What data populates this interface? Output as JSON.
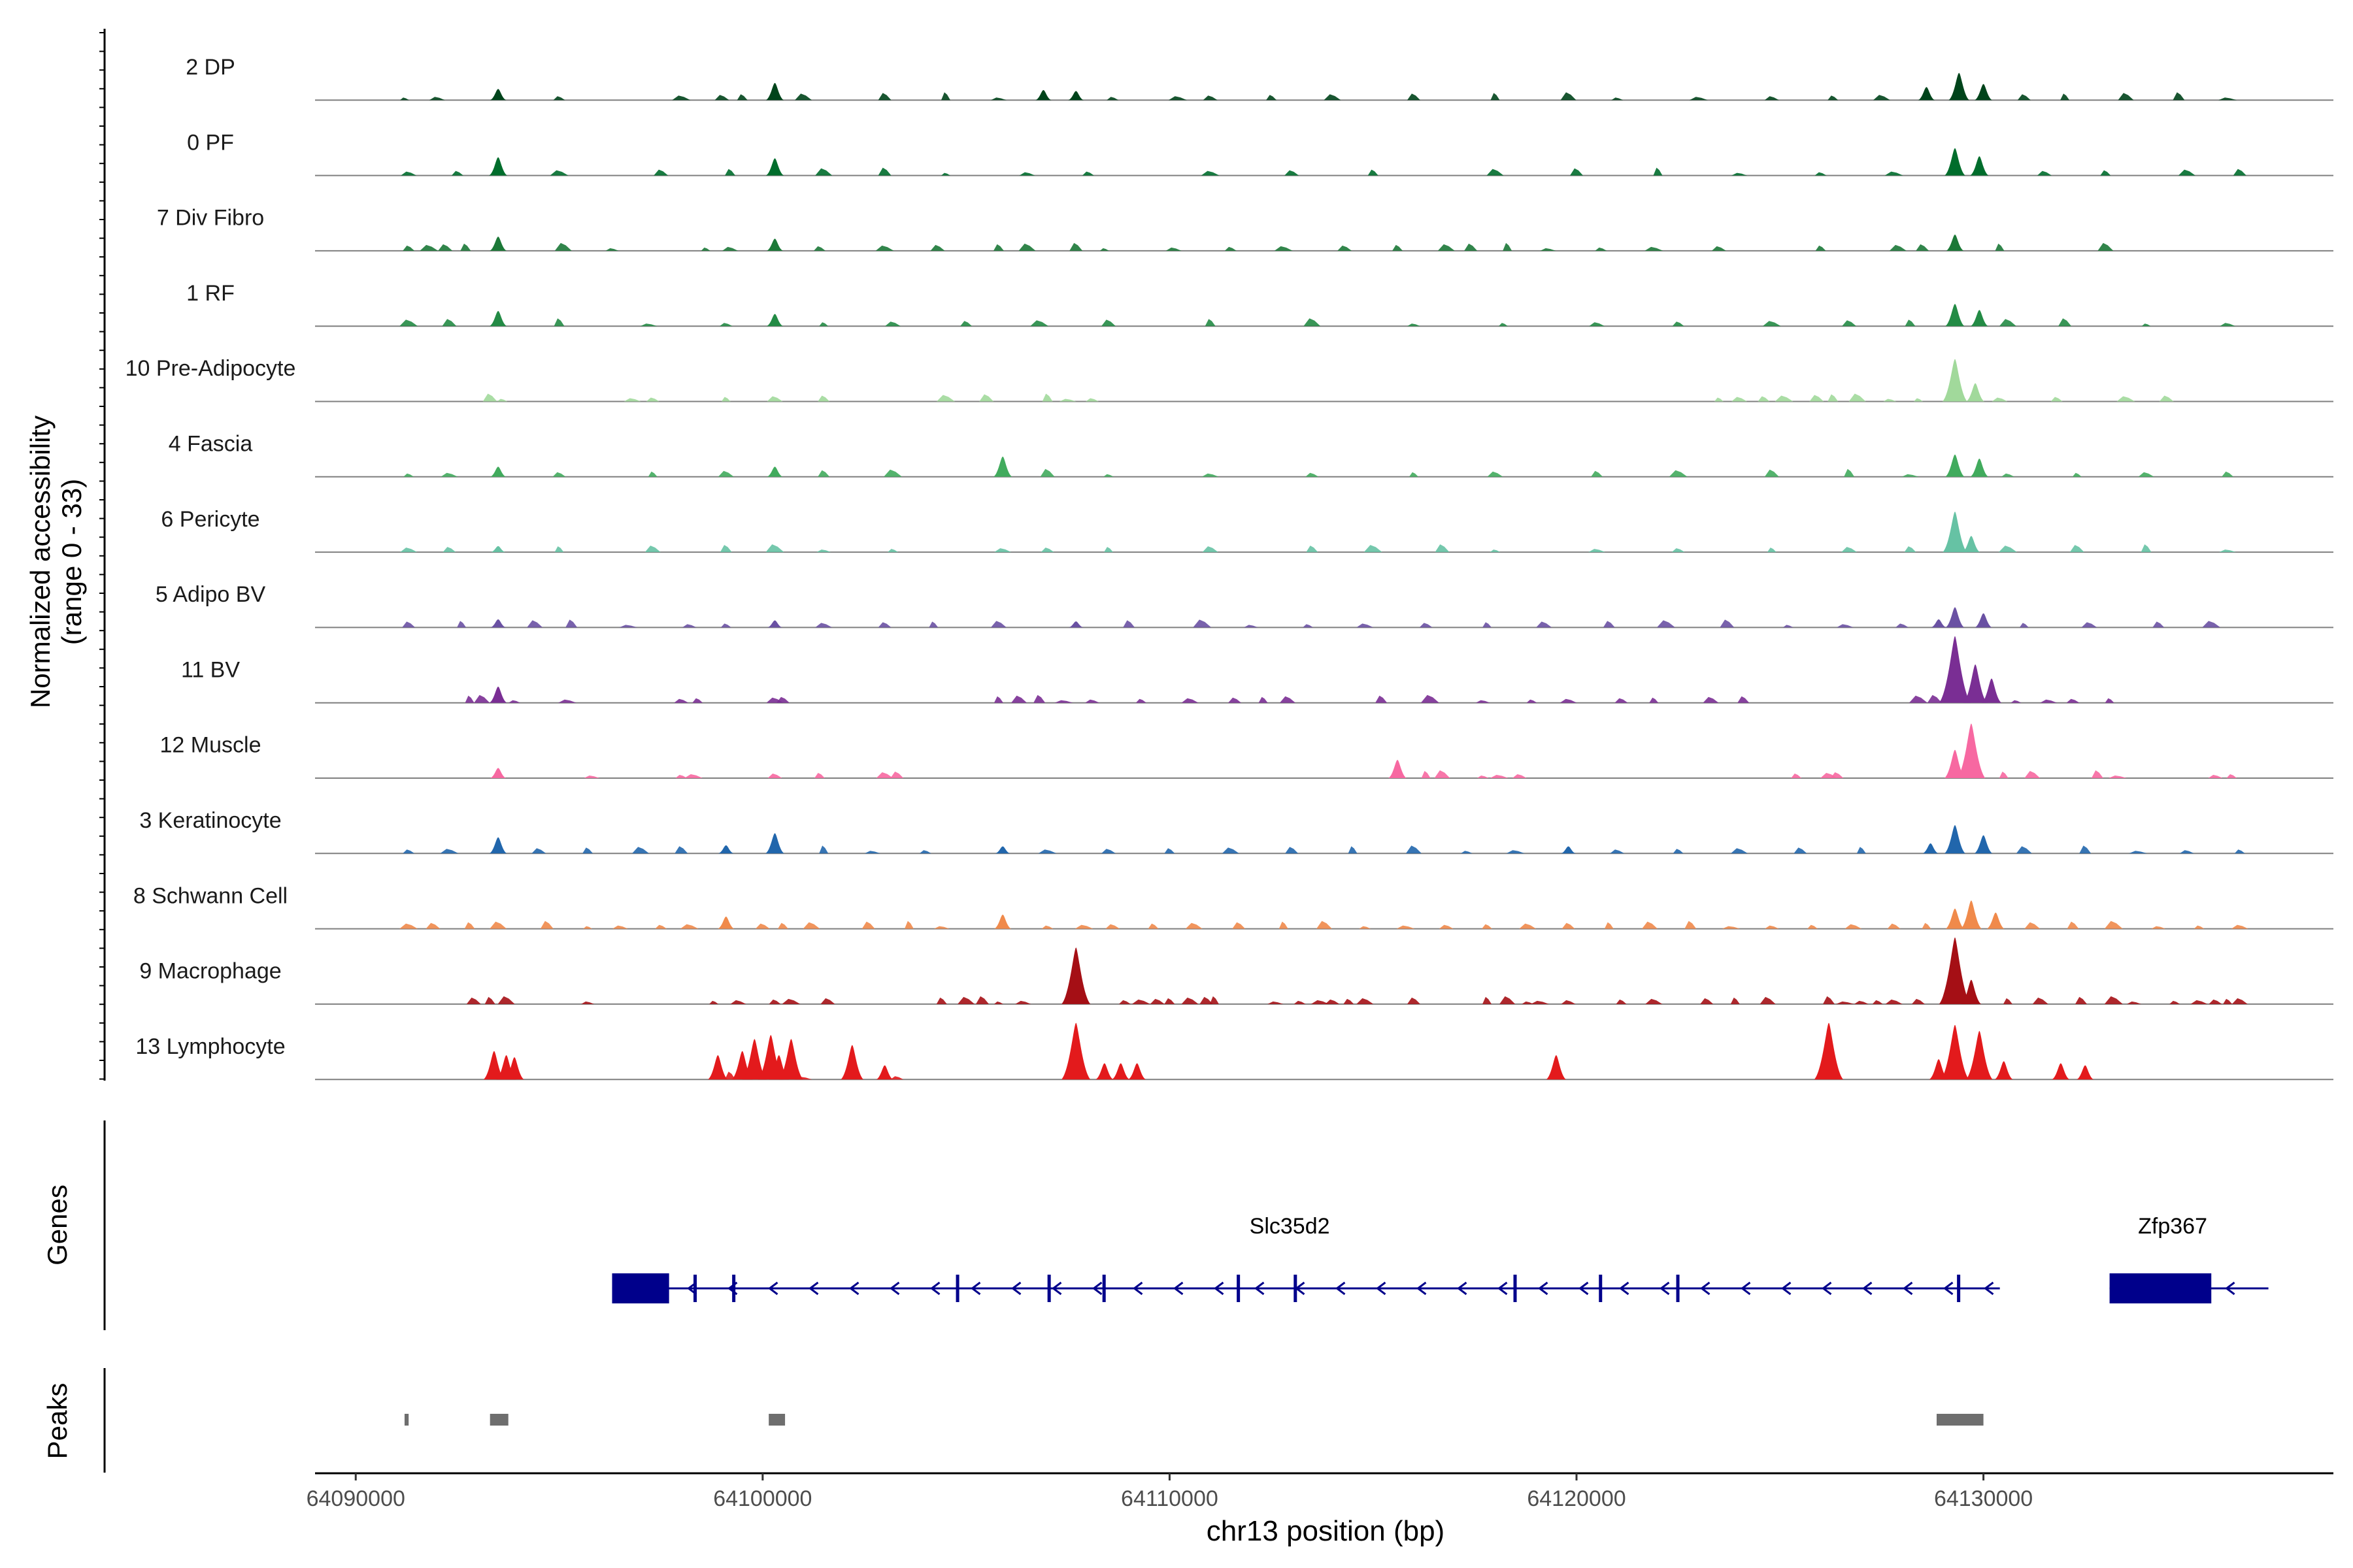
{
  "chart_data": {
    "type": "area",
    "chromosome": "chr13",
    "xlabel": "chr13 position (bp)",
    "ylabel_line1": "Normalized accessibility",
    "ylabel_line2": "(range 0 - 33)",
    "y_range": [
      0,
      33
    ],
    "xlim": [
      64089000,
      64138600
    ],
    "x_ticks": [
      64090000,
      64100000,
      64110000,
      64120000,
      64130000
    ],
    "x_tick_labels": [
      "64090000",
      "64100000",
      "64110000",
      "64120000",
      "64130000"
    ],
    "genes_label": "Genes",
    "peaks_label": "Peaks",
    "tracks": [
      {
        "name": "2 DP",
        "color": "#00441b",
        "peaks": [
          {
            "x": 64093500,
            "y": 5.5
          },
          {
            "x": 64100300,
            "y": 8.5
          },
          {
            "x": 64106900,
            "y": 5
          },
          {
            "x": 64107700,
            "y": 4.5
          },
          {
            "x": 64128600,
            "y": 6.5
          },
          {
            "x": 64129400,
            "y": 13.5
          },
          {
            "x": 64130000,
            "y": 8
          }
        ],
        "background": [
          64091200,
          64092000,
          64095000,
          64098000,
          64099000,
          64099500,
          64101000,
          64103000,
          64104500,
          64105800,
          64108600,
          64110200,
          64111000,
          64112500,
          64114000,
          64116000,
          64118000,
          64119800,
          64121000,
          64123000,
          64124800,
          64126300,
          64127500,
          64131000,
          64132000,
          64133500,
          64134800,
          64136000
        ]
      },
      {
        "name": "0 PF",
        "color": "#006d2c",
        "peaks": [
          {
            "x": 64093500,
            "y": 9
          },
          {
            "x": 64100300,
            "y": 8.5
          },
          {
            "x": 64129300,
            "y": 13.5
          },
          {
            "x": 64129900,
            "y": 9.5
          }
        ],
        "background": [
          64091300,
          64092500,
          64095000,
          64097500,
          64099200,
          64101500,
          64103000,
          64104500,
          64106500,
          64108000,
          64111000,
          64113000,
          64115000,
          64118000,
          64120000,
          64122000,
          64124000,
          64126000,
          64127800,
          64131500,
          64133000,
          64135000,
          64136300
        ]
      },
      {
        "name": "7 Div Fibro",
        "color": "#1b7837",
        "peaks": [
          {
            "x": 64093500,
            "y": 7
          },
          {
            "x": 64100300,
            "y": 6
          },
          {
            "x": 64129300,
            "y": 8
          }
        ],
        "background": [
          64091300,
          64091800,
          64092200,
          64092700,
          64095100,
          64096300,
          64098600,
          64099200,
          64101400,
          64103000,
          64104300,
          64105800,
          64106500,
          64107700,
          64108400,
          64110100,
          64111500,
          64112800,
          64114300,
          64115600,
          64116800,
          64117400,
          64118300,
          64119300,
          64120600,
          64121900,
          64123500,
          64126000,
          64127900,
          64128500,
          64130400,
          64133000
        ]
      },
      {
        "name": "1 RF",
        "color": "#238b45",
        "peaks": [
          {
            "x": 64093500,
            "y": 7.5
          },
          {
            "x": 64100300,
            "y": 6
          },
          {
            "x": 64129300,
            "y": 11
          },
          {
            "x": 64129900,
            "y": 8
          }
        ],
        "background": [
          64091300,
          64092300,
          64095000,
          64097200,
          64099100,
          64101500,
          64103200,
          64105000,
          64106800,
          64108500,
          64111000,
          64113500,
          64116000,
          64118200,
          64120500,
          64122500,
          64124800,
          64126700,
          64128200,
          64130600,
          64132000,
          64134000,
          64136000
        ]
      },
      {
        "name": "10 Pre-Adipocyte",
        "color": "#a1d99b",
        "peaks": [
          {
            "x": 64129300,
            "y": 21
          },
          {
            "x": 64129800,
            "y": 9
          }
        ],
        "background": [
          64093300,
          64093600,
          64096800,
          64097300,
          64099100,
          64100300,
          64101500,
          64104500,
          64105500,
          64107000,
          64107500,
          64108100,
          64123500,
          64124000,
          64124600,
          64125100,
          64125900,
          64126300,
          64126900,
          64127700,
          64128400,
          64130400,
          64131800,
          64133500,
          64134500
        ]
      },
      {
        "name": "4 Fascia",
        "color": "#41ab5d",
        "peaks": [
          {
            "x": 64093500,
            "y": 5
          },
          {
            "x": 64100300,
            "y": 5
          },
          {
            "x": 64105900,
            "y": 10
          },
          {
            "x": 64129300,
            "y": 11
          },
          {
            "x": 64129900,
            "y": 9
          }
        ],
        "background": [
          64091300,
          64092300,
          64095000,
          64097300,
          64099100,
          64101500,
          64103200,
          64107000,
          64108500,
          64111000,
          64113500,
          64116000,
          64118000,
          64120500,
          64122500,
          64124800,
          64126700,
          64128200,
          64130600,
          64132300,
          64134000,
          64136000
        ]
      },
      {
        "name": "6 Pericyte",
        "color": "#66c2a4",
        "peaks": [
          {
            "x": 64093500,
            "y": 3
          },
          {
            "x": 64129300,
            "y": 20
          },
          {
            "x": 64129700,
            "y": 8
          }
        ],
        "background": [
          64091300,
          64092300,
          64095000,
          64097300,
          64099100,
          64100300,
          64101500,
          64103200,
          64105900,
          64107000,
          64108500,
          64111000,
          64113500,
          64115000,
          64116700,
          64118000,
          64120500,
          64122500,
          64124800,
          64126700,
          64128200,
          64130600,
          64132300,
          64134000,
          64136000
        ]
      },
      {
        "name": "5 Adipo BV",
        "color": "#6a51a3",
        "peaks": [
          {
            "x": 64093500,
            "y": 4
          },
          {
            "x": 64100300,
            "y": 3.5
          },
          {
            "x": 64107700,
            "y": 3
          },
          {
            "x": 64128900,
            "y": 4
          },
          {
            "x": 64129300,
            "y": 10
          },
          {
            "x": 64130000,
            "y": 7
          }
        ],
        "background": [
          64091300,
          64092600,
          64094400,
          64095300,
          64096700,
          64098200,
          64099100,
          64101500,
          64103000,
          64104200,
          64105800,
          64109000,
          64110800,
          64112000,
          64113400,
          64114800,
          64116300,
          64117800,
          64119200,
          64120800,
          64122200,
          64123700,
          64125200,
          64126600,
          64128000,
          64131000,
          64132600,
          64134300,
          64135600
        ]
      },
      {
        "name": "11 BV",
        "color": "#7a2e94",
        "peaks": [
          {
            "x": 64093500,
            "y": 8
          },
          {
            "x": 64129300,
            "y": 33
          },
          {
            "x": 64129800,
            "y": 19
          },
          {
            "x": 64130200,
            "y": 12
          }
        ],
        "background": [
          64092800,
          64093100,
          64093900,
          64095200,
          64098000,
          64098400,
          64100300,
          64100500,
          64105800,
          64106300,
          64106800,
          64107400,
          64108100,
          64109300,
          64110500,
          64111600,
          64112300,
          64112900,
          64115200,
          64116400,
          64117700,
          64118900,
          64119800,
          64121100,
          64121900,
          64123300,
          64124100,
          64128400,
          64128800,
          64130800,
          64131600,
          64132200,
          64133100
        ]
      },
      {
        "name": "12 Muscle",
        "color": "#f768a1",
        "peaks": [
          {
            "x": 64093500,
            "y": 5
          },
          {
            "x": 64115600,
            "y": 9
          },
          {
            "x": 64129700,
            "y": 27
          },
          {
            "x": 64129300,
            "y": 14
          }
        ],
        "background": [
          64095800,
          64098000,
          64098300,
          64100300,
          64101400,
          64103000,
          64103300,
          64116300,
          64116700,
          64117700,
          64118100,
          64118600,
          64125400,
          64126200,
          64126400,
          64130500,
          64131200,
          64132800,
          64133300,
          64135700,
          64136100
        ]
      },
      {
        "name": "3 Keratinocyte",
        "color": "#2166ac",
        "peaks": [
          {
            "x": 64093500,
            "y": 8
          },
          {
            "x": 64099100,
            "y": 4
          },
          {
            "x": 64100300,
            "y": 10
          },
          {
            "x": 64105900,
            "y": 3.5
          },
          {
            "x": 64119800,
            "y": 3.5
          },
          {
            "x": 64128700,
            "y": 5
          },
          {
            "x": 64129300,
            "y": 14
          },
          {
            "x": 64130000,
            "y": 9
          }
        ],
        "background": [
          64091300,
          64092300,
          64094500,
          64095700,
          64097000,
          64098000,
          64101500,
          64102700,
          64104000,
          64107000,
          64108500,
          64110000,
          64111500,
          64113000,
          64114500,
          64116000,
          64117300,
          64118500,
          64121000,
          64122500,
          64124000,
          64125500,
          64127000,
          64131000,
          64132500,
          64133800,
          64135000,
          64136300
        ]
      },
      {
        "name": "8 Schwann Cell",
        "color": "#f08a4b",
        "peaks": [
          {
            "x": 64099100,
            "y": 6
          },
          {
            "x": 64105900,
            "y": 7
          },
          {
            "x": 64129300,
            "y": 10
          },
          {
            "x": 64129700,
            "y": 14
          },
          {
            "x": 64130300,
            "y": 8
          }
        ],
        "background": [
          64091300,
          64091900,
          64092800,
          64093500,
          64094700,
          64095700,
          64096500,
          64097500,
          64098200,
          64100000,
          64100500,
          64101200,
          64102600,
          64103600,
          64104400,
          64107000,
          64107900,
          64108600,
          64109600,
          64110600,
          64111700,
          64112800,
          64113800,
          64114800,
          64115800,
          64116800,
          64117800,
          64118800,
          64119800,
          64120800,
          64121800,
          64122800,
          64123800,
          64124800,
          64125800,
          64126800,
          64127800,
          64128600,
          64131200,
          64132200,
          64133200,
          64134300,
          64135300,
          64136300
        ]
      },
      {
        "name": "9 Macrophage",
        "color": "#a50f15",
        "peaks": [
          {
            "x": 64107700,
            "y": 28
          },
          {
            "x": 64129300,
            "y": 33
          },
          {
            "x": 64129700,
            "y": 12
          }
        ],
        "background": [
          64092900,
          64093300,
          64093700,
          64095700,
          64098800,
          64099400,
          64100300,
          64100700,
          64101600,
          64104400,
          64105000,
          64105400,
          64105800,
          64106400,
          64108900,
          64109300,
          64109700,
          64110000,
          64110500,
          64110900,
          64111100,
          64112600,
          64113200,
          64113700,
          64114000,
          64114400,
          64114800,
          64116000,
          64117800,
          64118300,
          64118800,
          64119100,
          64119800,
          64121100,
          64121900,
          64123200,
          64123900,
          64124700,
          64126200,
          64126600,
          64127000,
          64127400,
          64127800,
          64128400,
          64130600,
          64131400,
          64132400,
          64133200,
          64133700,
          64134700,
          64135300,
          64135700,
          64136000,
          64136300
        ]
      },
      {
        "name": "13 Lymphocyte",
        "color": "#e31a1c",
        "peaks": [
          {
            "x": 64093400,
            "y": 14
          },
          {
            "x": 64093700,
            "y": 12
          },
          {
            "x": 64093900,
            "y": 11
          },
          {
            "x": 64098900,
            "y": 12
          },
          {
            "x": 64099500,
            "y": 14
          },
          {
            "x": 64099800,
            "y": 20
          },
          {
            "x": 64100200,
            "y": 22
          },
          {
            "x": 64100400,
            "y": 12
          },
          {
            "x": 64100700,
            "y": 20
          },
          {
            "x": 64102200,
            "y": 17
          },
          {
            "x": 64103000,
            "y": 7
          },
          {
            "x": 64107700,
            "y": 28
          },
          {
            "x": 64108400,
            "y": 8
          },
          {
            "x": 64108800,
            "y": 8
          },
          {
            "x": 64109200,
            "y": 8
          },
          {
            "x": 64119500,
            "y": 12
          },
          {
            "x": 64126200,
            "y": 28
          },
          {
            "x": 64128900,
            "y": 10
          },
          {
            "x": 64129300,
            "y": 27
          },
          {
            "x": 64129900,
            "y": 24
          },
          {
            "x": 64130500,
            "y": 9
          },
          {
            "x": 64131900,
            "y": 8
          },
          {
            "x": 64132500,
            "y": 7
          }
        ],
        "background": [
          64099200,
          64101000,
          64103300
        ]
      }
    ],
    "genes": [
      {
        "name": "Slc35d2",
        "strand": "-",
        "start": 64096300,
        "end": 64129600,
        "exons": [
          [
            64096300,
            64097700
          ],
          [
            64098300,
            64098450
          ],
          [
            64099250,
            64099400
          ],
          [
            64104750,
            64104850
          ],
          [
            64107000,
            64107100
          ],
          [
            64108350,
            64108450
          ],
          [
            64111650,
            64111750
          ],
          [
            64113050,
            64113150
          ],
          [
            64118450,
            64118550
          ],
          [
            64120550,
            64120650
          ],
          [
            64122450,
            64122550
          ],
          [
            64129350,
            64129550
          ]
        ]
      },
      {
        "name": "Zfp367",
        "strand": "-",
        "start": 64133100,
        "end": 64136200,
        "exons": [
          [
            64133100,
            64135600
          ]
        ]
      }
    ],
    "peaks": [
      [
        64091200,
        64091300
      ],
      [
        64093300,
        64093750
      ],
      [
        64100150,
        64100550
      ],
      [
        64128850,
        64130000
      ]
    ]
  }
}
